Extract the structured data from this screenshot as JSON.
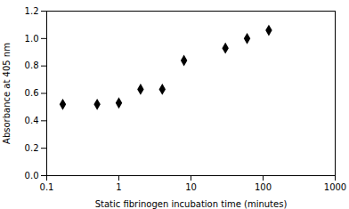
{
  "chart_data": {
    "type": "scatter",
    "xlabel": "Static fibrinogen incubation time (minutes)",
    "ylabel": "Absorbance at 405 nm",
    "x": [
      0.1667,
      0.5,
      1.0,
      2.0,
      4.0,
      8.0,
      30.0,
      60.0,
      120.0
    ],
    "values": [
      0.52,
      0.52,
      0.53,
      0.63,
      0.63,
      0.84,
      0.93,
      1.0,
      1.06
    ],
    "errors": [
      0.015,
      0.01,
      0.01,
      0.012,
      0.01,
      0.015,
      0.01,
      0.01,
      0.015
    ],
    "log": "x",
    "xlim": [
      0.1,
      1000
    ],
    "xticks": [
      0.1,
      1,
      10,
      100,
      1000
    ],
    "ylim": [
      0,
      1.2
    ],
    "yticks": [
      {
        "value": 0,
        "label": "0.0"
      },
      0.2,
      0.4,
      0.6,
      0.8,
      {
        "value": 1.0,
        "label": "1.0"
      },
      1.2
    ],
    "marker": "diamond",
    "color": "black",
    "grid": false
  }
}
